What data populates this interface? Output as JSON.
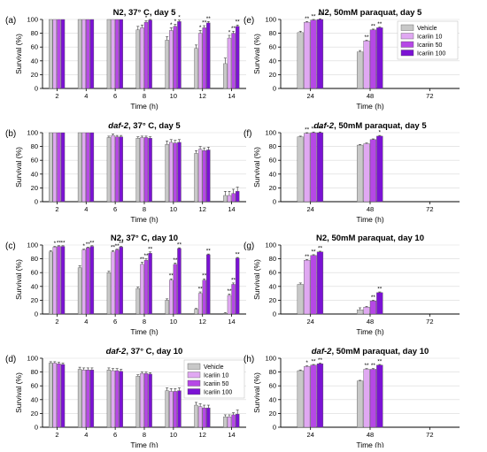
{
  "colors": {
    "vehicle": "#c8c8c8",
    "icariin10": "#e0a8f2",
    "icariin50": "#b648e6",
    "icariin100": "#7b12d4",
    "axis": "#000000",
    "grid": "#d9d9d9",
    "errorbar": "#333333"
  },
  "legend": {
    "entries": [
      "Vehicle",
      "Icariin 10",
      "Icariin 50",
      "Icariin 100"
    ]
  },
  "chart_data": [
    {
      "panel": "(a)",
      "title": "N2, 37° C, day 5",
      "type": "bar",
      "xlabel": "Time (h)",
      "ylabel": "Survival (%)",
      "ylim": [
        0,
        100
      ],
      "yticks": [
        0,
        20,
        40,
        60,
        80,
        100
      ],
      "grid": true,
      "categories": [
        "2",
        "4",
        "6",
        "8",
        "10",
        "12",
        "14"
      ],
      "series": [
        {
          "name": "Vehicle",
          "values": [
            100,
            100,
            100,
            85,
            70,
            58,
            36
          ],
          "err": [
            0,
            0,
            0,
            5,
            5,
            5,
            8
          ]
        },
        {
          "name": "Icariin 10",
          "values": [
            100,
            100,
            100,
            88,
            84,
            80,
            73
          ],
          "err": [
            0,
            0,
            0,
            4,
            4,
            4,
            4
          ]
        },
        {
          "name": "Icariin 50",
          "values": [
            100,
            100,
            100,
            96,
            90,
            88,
            80
          ],
          "err": [
            0,
            0,
            0,
            2,
            3,
            3,
            3
          ]
        },
        {
          "name": "Icariin 100",
          "values": [
            100,
            100,
            100,
            99,
            97,
            95,
            90
          ],
          "err": [
            0,
            0,
            0,
            1,
            2,
            2,
            2
          ]
        }
      ],
      "sig": [
        [
          "",
          "",
          "",
          ""
        ],
        [
          "",
          "",
          "",
          ""
        ],
        [
          "",
          "",
          "",
          ""
        ],
        [
          "",
          "",
          "*",
          ""
        ],
        [
          "",
          "*",
          "*",
          "*"
        ],
        [
          "",
          "*",
          "**",
          "**"
        ],
        [
          "",
          "*",
          "**",
          "**"
        ]
      ]
    },
    {
      "panel": "(b)",
      "title": "daf-2, 37° C, day 5",
      "type": "bar",
      "xlabel": "Time (h)",
      "ylabel": "Survival (%)",
      "ylim": [
        0,
        100
      ],
      "yticks": [
        0,
        20,
        40,
        60,
        80,
        100
      ],
      "grid": true,
      "categories": [
        "2",
        "4",
        "6",
        "8",
        "10",
        "12",
        "14"
      ],
      "series": [
        {
          "name": "Vehicle",
          "values": [
            100,
            100,
            93,
            92,
            83,
            70,
            9
          ],
          "err": [
            0,
            0,
            2,
            2,
            5,
            4,
            6
          ]
        },
        {
          "name": "Icariin 10",
          "values": [
            100,
            100,
            96,
            93,
            86,
            76,
            9
          ],
          "err": [
            0,
            0,
            2,
            2,
            4,
            4,
            6
          ]
        },
        {
          "name": "Icariin 50",
          "values": [
            100,
            100,
            94,
            93,
            85,
            74,
            12
          ],
          "err": [
            0,
            0,
            2,
            2,
            4,
            4,
            6
          ]
        },
        {
          "name": "Icariin 100",
          "values": [
            100,
            100,
            94,
            92,
            86,
            75,
            15
          ],
          "err": [
            0,
            0,
            2,
            2,
            4,
            4,
            6
          ]
        }
      ],
      "sig": [
        [
          "",
          "",
          "",
          ""
        ],
        [
          "",
          "",
          "",
          ""
        ],
        [
          "",
          "",
          "",
          ""
        ],
        [
          "",
          "",
          "",
          ""
        ],
        [
          "",
          "",
          "",
          ""
        ],
        [
          "",
          "",
          "",
          ""
        ],
        [
          "",
          "",
          "",
          ""
        ]
      ]
    },
    {
      "panel": "(c)",
      "title": "N2, 37° C, day 10",
      "type": "bar",
      "xlabel": "Time (h)",
      "ylabel": "Survival (%)",
      "ylim": [
        0,
        100
      ],
      "yticks": [
        0,
        20,
        40,
        60,
        80,
        100
      ],
      "grid": true,
      "categories": [
        "2",
        "4",
        "6",
        "8",
        "10",
        "12",
        "14"
      ],
      "series": [
        {
          "name": "Vehicle",
          "values": [
            90,
            67,
            60,
            37,
            20,
            7,
            1
          ],
          "err": [
            2,
            3,
            2,
            2,
            2,
            1,
            1
          ]
        },
        {
          "name": "Icariin 10",
          "values": [
            97,
            93,
            90,
            72,
            49,
            30,
            27
          ],
          "err": [
            1,
            1,
            2,
            3,
            2,
            2,
            2
          ]
        },
        {
          "name": "Icariin 50",
          "values": [
            98,
            96,
            93,
            78,
            72,
            49,
            43
          ],
          "err": [
            1,
            1,
            1,
            2,
            2,
            2,
            2
          ]
        },
        {
          "name": "Icariin 100",
          "values": [
            98,
            98,
            97,
            88,
            95,
            86,
            81
          ],
          "err": [
            1,
            1,
            1,
            2,
            1,
            1,
            1
          ]
        }
      ],
      "sig": [
        [
          "",
          "*",
          "**",
          "**"
        ],
        [
          "",
          "*",
          "**",
          "**"
        ],
        [
          "",
          "**",
          "**",
          "**"
        ],
        [
          "",
          "**",
          "**",
          "**"
        ],
        [
          "",
          "**",
          "**",
          "**"
        ],
        [
          "",
          "**",
          "**",
          "**"
        ],
        [
          "",
          "**",
          "**",
          "**"
        ]
      ]
    },
    {
      "panel": "(d)",
      "title": "daf-2, 37° C, day 10",
      "type": "bar",
      "xlabel": "Time (h)",
      "ylabel": "Survival (%)",
      "ylim": [
        0,
        100
      ],
      "yticks": [
        0,
        20,
        40,
        60,
        80,
        100
      ],
      "grid": true,
      "legend": "top-right",
      "categories": [
        "2",
        "4",
        "6",
        "8",
        "10",
        "12",
        "14"
      ],
      "series": [
        {
          "name": "Vehicle",
          "values": [
            93,
            84,
            83,
            74,
            53,
            32,
            15
          ],
          "err": [
            2,
            3,
            3,
            2,
            4,
            4,
            3
          ]
        },
        {
          "name": "Icariin 10",
          "values": [
            93,
            83,
            82,
            78,
            52,
            30,
            15
          ],
          "err": [
            2,
            3,
            3,
            2,
            4,
            4,
            3
          ]
        },
        {
          "name": "Icariin 50",
          "values": [
            92,
            83,
            82,
            78,
            52,
            28,
            18
          ],
          "err": [
            2,
            3,
            3,
            2,
            4,
            4,
            3
          ]
        },
        {
          "name": "Icariin 100",
          "values": [
            91,
            83,
            81,
            77,
            53,
            28,
            19
          ],
          "err": [
            2,
            3,
            3,
            2,
            4,
            4,
            6
          ]
        }
      ],
      "sig": [
        [
          "",
          "",
          "",
          ""
        ],
        [
          "",
          "",
          "",
          ""
        ],
        [
          "",
          "",
          "",
          ""
        ],
        [
          "",
          "",
          "",
          ""
        ],
        [
          "",
          "",
          "",
          ""
        ],
        [
          "",
          "",
          "",
          ""
        ],
        [
          "",
          "",
          "",
          ""
        ]
      ]
    },
    {
      "panel": "(e)",
      "title": "N2, 50mM paraquat, day 5",
      "type": "bar",
      "xlabel": "Time (h)",
      "ylabel": "Survival (%)",
      "ylim": [
        0,
        100
      ],
      "yticks": [
        0,
        20,
        40,
        60,
        80,
        100
      ],
      "grid": true,
      "legend": "top-right",
      "categories": [
        "24",
        "48",
        "72"
      ],
      "series": [
        {
          "name": "Vehicle",
          "values": [
            81,
            53,
            0
          ],
          "err": [
            2,
            2,
            0
          ]
        },
        {
          "name": "Icariin 10",
          "values": [
            96,
            69,
            0
          ],
          "err": [
            1,
            1,
            0
          ]
        },
        {
          "name": "Icariin 50",
          "values": [
            99,
            85,
            0
          ],
          "err": [
            1,
            1,
            0
          ]
        },
        {
          "name": "Icariin 100",
          "values": [
            100,
            88,
            0
          ],
          "err": [
            1,
            1,
            0
          ]
        }
      ],
      "sig": [
        [
          "",
          "**",
          "**",
          "**"
        ],
        [
          "",
          "**",
          "**",
          "**"
        ],
        [
          "",
          "",
          "",
          ""
        ]
      ]
    },
    {
      "panel": "(f)",
      "title": "daf-2, 50mM paraquat, day 5",
      "type": "bar",
      "xlabel": "Time (h)",
      "ylabel": "Survival (%)",
      "ylim": [
        0,
        100
      ],
      "yticks": [
        0,
        20,
        40,
        60,
        80,
        100
      ],
      "grid": true,
      "categories": [
        "24",
        "48",
        "72"
      ],
      "series": [
        {
          "name": "Vehicle",
          "values": [
            94,
            82,
            0
          ],
          "err": [
            1,
            1,
            0
          ]
        },
        {
          "name": "Icariin 10",
          "values": [
            99,
            84,
            0
          ],
          "err": [
            1,
            1,
            0
          ]
        },
        {
          "name": "Icariin 50",
          "values": [
            100,
            90,
            0
          ],
          "err": [
            1,
            1,
            0
          ]
        },
        {
          "name": "Icariin 100",
          "values": [
            100,
            95,
            0
          ],
          "err": [
            1,
            1,
            0
          ]
        }
      ],
      "sig": [
        [
          "",
          "**",
          "**",
          "**"
        ],
        [
          "",
          "",
          "",
          "*"
        ],
        [
          "",
          "",
          "",
          ""
        ]
      ]
    },
    {
      "panel": "(g)",
      "title": "N2, 50mM paraquat, day 10",
      "type": "bar",
      "xlabel": "Time (h)",
      "ylabel": "Survival (%)",
      "ylim": [
        0,
        100
      ],
      "yticks": [
        0,
        20,
        40,
        60,
        80,
        100
      ],
      "grid": true,
      "categories": [
        "24",
        "48",
        "72"
      ],
      "series": [
        {
          "name": "Vehicle",
          "values": [
            43,
            6,
            0
          ],
          "err": [
            2,
            3,
            0
          ]
        },
        {
          "name": "Icariin 10",
          "values": [
            78,
            10,
            0
          ],
          "err": [
            1,
            1,
            0
          ]
        },
        {
          "name": "Icariin 50",
          "values": [
            85,
            19,
            0
          ],
          "err": [
            1,
            1,
            0
          ]
        },
        {
          "name": "Icariin 100",
          "values": [
            90,
            31,
            0
          ],
          "err": [
            1,
            1,
            0
          ]
        }
      ],
      "sig": [
        [
          "",
          "**",
          "**",
          "**"
        ],
        [
          "",
          "",
          "**",
          "**"
        ],
        [
          "",
          "",
          "",
          ""
        ]
      ]
    },
    {
      "panel": "(h)",
      "title": "daf-2, 50mM paraquat, day 10",
      "type": "bar",
      "xlabel": "Time (h)",
      "ylabel": "Survival (%)",
      "ylim": [
        0,
        100
      ],
      "yticks": [
        0,
        20,
        40,
        60,
        80,
        100
      ],
      "grid": true,
      "categories": [
        "24",
        "48",
        "72"
      ],
      "series": [
        {
          "name": "Vehicle",
          "values": [
            82,
            67,
            0
          ],
          "err": [
            1,
            1,
            0
          ]
        },
        {
          "name": "Icariin 10",
          "values": [
            88,
            84,
            0
          ],
          "err": [
            1,
            1,
            0
          ]
        },
        {
          "name": "Icariin 50",
          "values": [
            90,
            84,
            0
          ],
          "err": [
            1,
            1,
            0
          ]
        },
        {
          "name": "Icariin 100",
          "values": [
            92,
            90,
            0
          ],
          "err": [
            1,
            1,
            0
          ]
        }
      ],
      "sig": [
        [
          "",
          "*",
          "**",
          "**"
        ],
        [
          "",
          "**",
          "**",
          "**"
        ],
        [
          "",
          "",
          "",
          ""
        ]
      ]
    }
  ]
}
